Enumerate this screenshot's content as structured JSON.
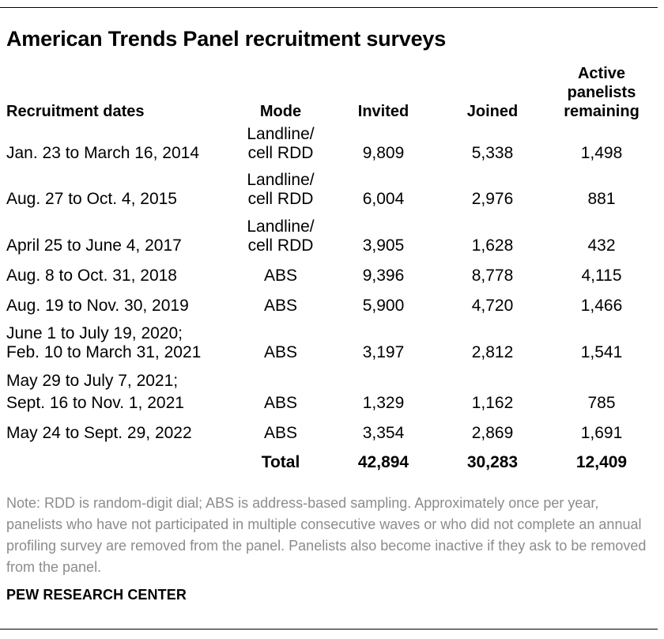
{
  "title": "American Trends Panel recruitment surveys",
  "columns": {
    "dates": "Recruitment dates",
    "mode": "Mode",
    "invited": "Invited",
    "joined": "Joined",
    "active": [
      "Active",
      "panelists",
      "remaining"
    ]
  },
  "rows": [
    {
      "dates": [
        "Jan. 23 to March 16, 2014"
      ],
      "mode": [
        "Landline/",
        "cell RDD"
      ],
      "invited": "9,809",
      "joined": "5,338",
      "active": "1,498"
    },
    {
      "dates": [
        "Aug. 27 to Oct. 4, 2015"
      ],
      "mode": [
        "Landline/",
        "cell RDD"
      ],
      "invited": "6,004",
      "joined": "2,976",
      "active": "881"
    },
    {
      "dates": [
        "April 25 to June 4, 2017"
      ],
      "mode": [
        "Landline/",
        "cell RDD"
      ],
      "invited": "3,905",
      "joined": "1,628",
      "active": "432"
    },
    {
      "dates": [
        "Aug. 8 to Oct. 31, 2018"
      ],
      "mode": [
        "ABS"
      ],
      "invited": "9,396",
      "joined": "8,778",
      "active": "4,115"
    },
    {
      "dates": [
        "Aug. 19 to Nov. 30, 2019"
      ],
      "mode": [
        "ABS"
      ],
      "invited": "5,900",
      "joined": "4,720",
      "active": "1,466"
    },
    {
      "dates": [
        "June 1 to July 19, 2020;",
        "Feb. 10 to March 31, 2021"
      ],
      "mode": [
        "ABS"
      ],
      "invited": "3,197",
      "joined": "2,812",
      "active": "1,541"
    },
    {
      "dates": [
        "May 29 to July 7, 2021;",
        "Sept. 16 to Nov. 1, 2021"
      ],
      "mode": [
        "ABS"
      ],
      "invited": "1,329",
      "joined": "1,162",
      "active": "785"
    },
    {
      "dates": [
        "May 24 to Sept. 29, 2022"
      ],
      "mode": [
        "ABS"
      ],
      "invited": "3,354",
      "joined": "2,869",
      "active": "1,691"
    }
  ],
  "total": {
    "label": "Total",
    "invited": "42,894",
    "joined": "30,283",
    "active": "12,409"
  },
  "note": "Note: RDD is random-digit dial; ABS is address-based sampling. Approximately once per year, panelists who have not participated in multiple consecutive waves or who did not complete an annual profiling survey are removed from the panel. Panelists also become inactive if they ask to be removed from the panel.",
  "source": "PEW RESEARCH CENTER"
}
